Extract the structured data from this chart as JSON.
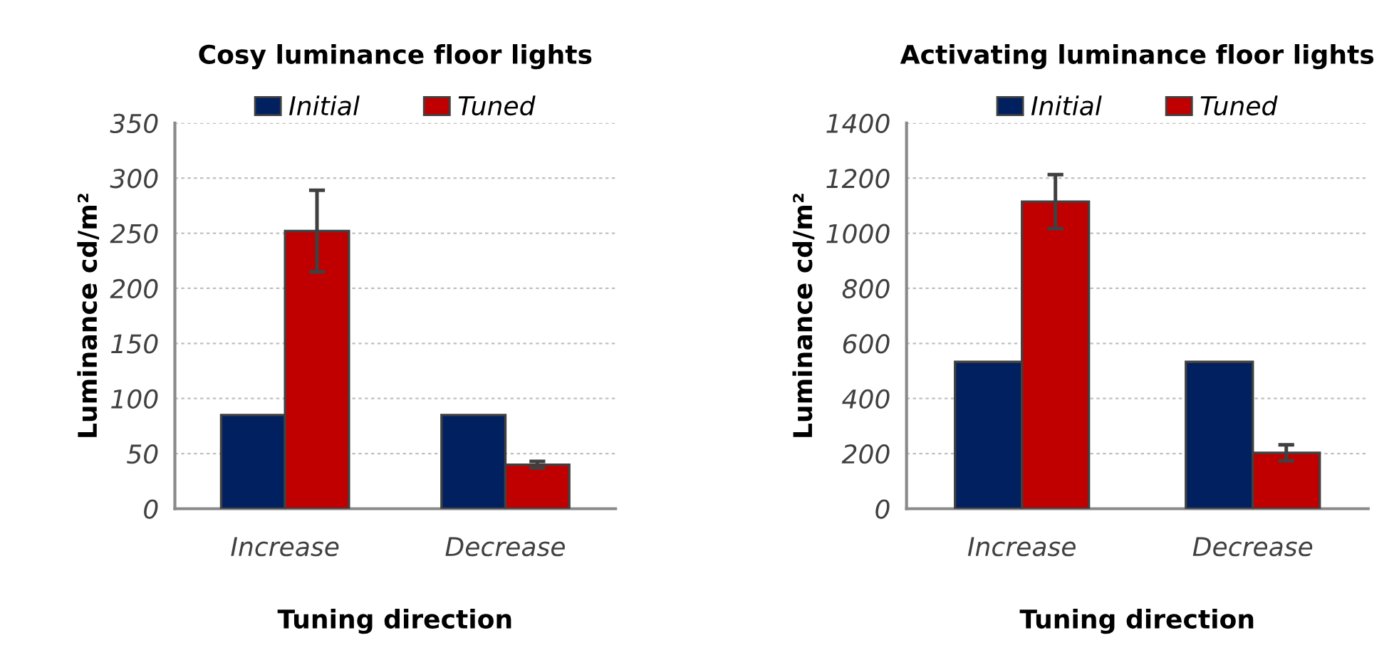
{
  "chart_data": [
    {
      "type": "bar",
      "title": "Cosy luminance floor lights",
      "xlabel": "Tuning direction",
      "ylabel": "Luminance cd/m²",
      "categories": [
        "Increase",
        "Decrease"
      ],
      "ylim": [
        0,
        350
      ],
      "yticks": [
        0,
        50,
        100,
        150,
        200,
        250,
        300,
        350
      ],
      "grid": "y",
      "legend": "top",
      "series": [
        {
          "name": "Initial",
          "color": "#002060",
          "values": [
            85,
            85
          ]
        },
        {
          "name": "Tuned",
          "color": "#c00000",
          "values": [
            252,
            40
          ],
          "errors": [
            37,
            3
          ]
        }
      ]
    },
    {
      "type": "bar",
      "title": "Activating luminance floor lights",
      "xlabel": "Tuning direction",
      "ylabel": "Luminance cd/m²",
      "categories": [
        "Increase",
        "Decrease"
      ],
      "ylim": [
        0,
        1400
      ],
      "yticks": [
        0,
        200,
        400,
        600,
        800,
        1000,
        1200,
        1400
      ],
      "grid": "y",
      "legend": "top",
      "series": [
        {
          "name": "Initial",
          "color": "#002060",
          "values": [
            533,
            533
          ]
        },
        {
          "name": "Tuned",
          "color": "#c00000",
          "values": [
            1115,
            203
          ],
          "errors": [
            98,
            29
          ]
        }
      ]
    }
  ]
}
